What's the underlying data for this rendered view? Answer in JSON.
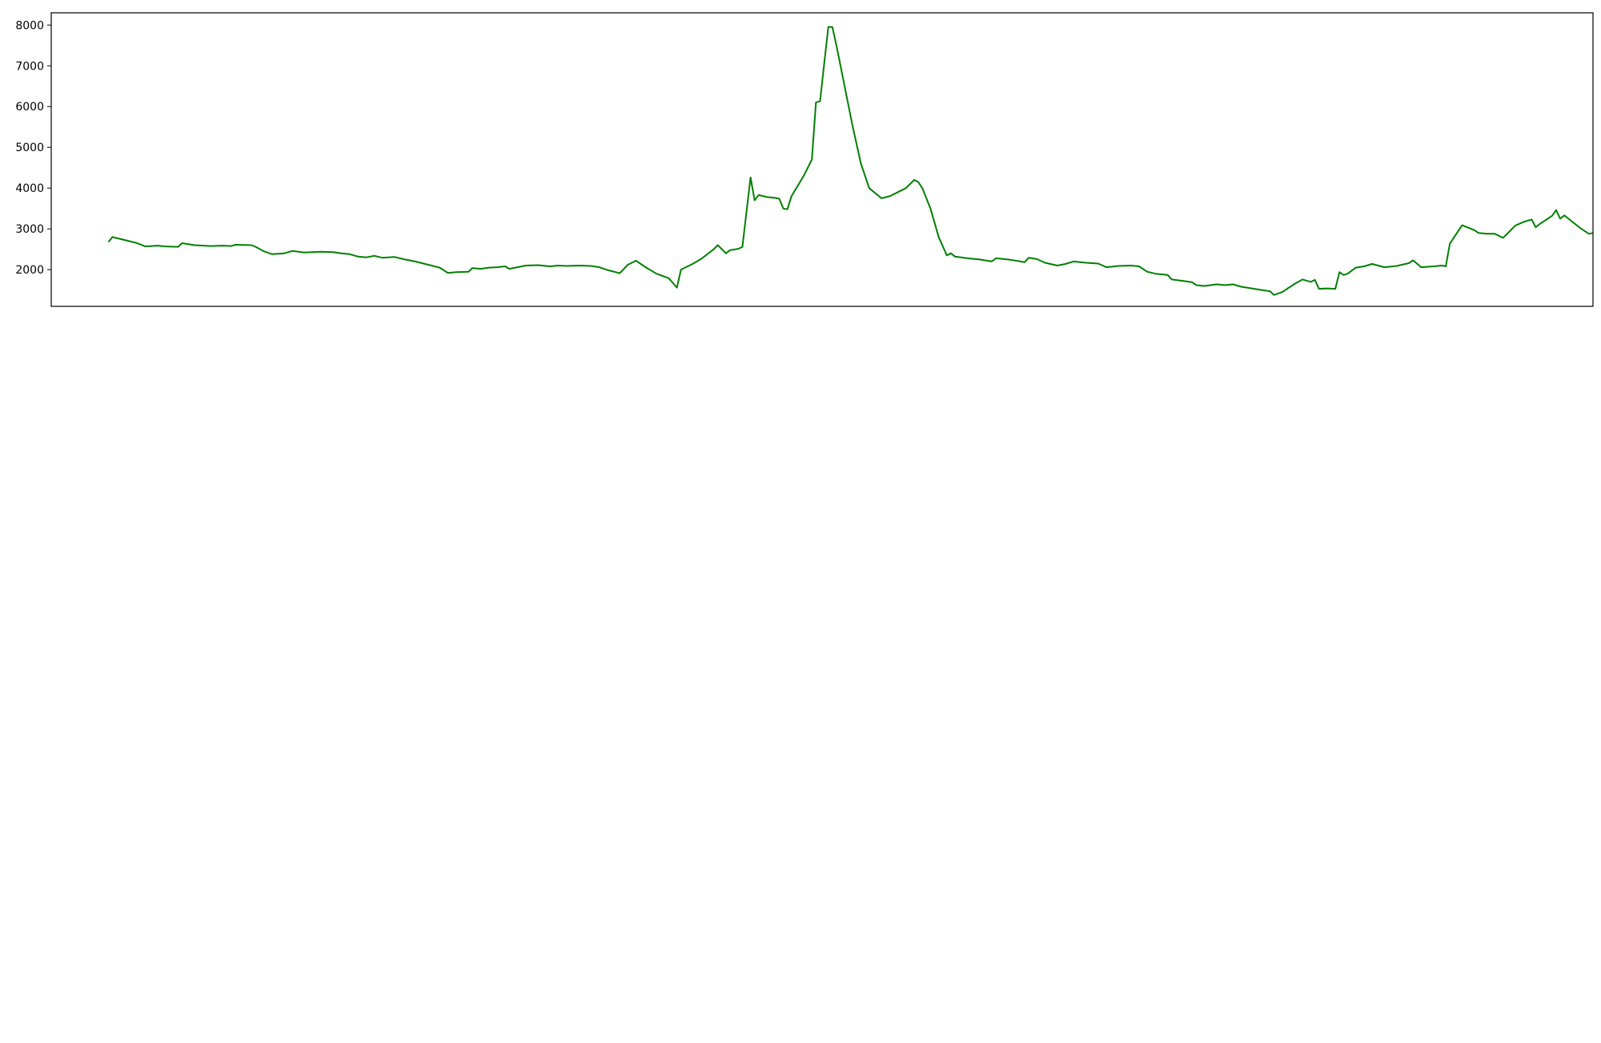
{
  "chart_data": [
    {
      "type": "line",
      "title": "",
      "xlabel": "",
      "ylabel": "",
      "ylim": [
        1100,
        8300
      ],
      "yticks": [
        2000,
        3000,
        4000,
        5000,
        6000,
        7000,
        8000
      ],
      "xlim": [
        "2022-02-24",
        "2023-03-08"
      ],
      "grid": false,
      "series": [
        {
          "color": "#008000",
          "points": [
            [
              "2022-03-10",
              2680
            ],
            [
              "2022-03-11",
              2800
            ],
            [
              "2022-03-13",
              2750
            ],
            [
              "2022-03-15",
              2700
            ],
            [
              "2022-03-17",
              2650
            ],
            [
              "2022-03-19",
              2570
            ],
            [
              "2022-03-22",
              2590
            ],
            [
              "2022-03-24",
              2570
            ],
            [
              "2022-03-27",
              2560
            ],
            [
              "2022-03-28",
              2650
            ],
            [
              "2022-03-31",
              2600
            ],
            [
              "2022-04-04",
              2580
            ],
            [
              "2022-04-07",
              2590
            ],
            [
              "2022-04-09",
              2580
            ],
            [
              "2022-04-10",
              2610
            ],
            [
              "2022-04-14",
              2600
            ],
            [
              "2022-04-15",
              2560
            ],
            [
              "2022-04-17",
              2450
            ],
            [
              "2022-04-19",
              2380
            ],
            [
              "2022-04-22",
              2400
            ],
            [
              "2022-04-24",
              2460
            ],
            [
              "2022-04-27",
              2420
            ],
            [
              "2022-05-01",
              2440
            ],
            [
              "2022-05-04",
              2430
            ],
            [
              "2022-05-06",
              2400
            ],
            [
              "2022-05-08",
              2380
            ],
            [
              "2022-05-10",
              2320
            ],
            [
              "2022-05-12",
              2300
            ],
            [
              "2022-05-14",
              2340
            ],
            [
              "2022-05-16",
              2290
            ],
            [
              "2022-05-19",
              2310
            ],
            [
              "2022-05-21",
              2260
            ],
            [
              "2022-05-24",
              2200
            ],
            [
              "2022-05-26",
              2150
            ],
            [
              "2022-05-28",
              2100
            ],
            [
              "2022-05-30",
              2050
            ],
            [
              "2022-06-01",
              1920
            ],
            [
              "2022-06-03",
              1940
            ],
            [
              "2022-06-06",
              1950
            ],
            [
              "2022-06-07",
              2040
            ],
            [
              "2022-06-09",
              2020
            ],
            [
              "2022-06-11",
              2050
            ],
            [
              "2022-06-13",
              2060
            ],
            [
              "2022-06-15",
              2080
            ],
            [
              "2022-06-16",
              2020
            ],
            [
              "2022-06-18",
              2060
            ],
            [
              "2022-06-20",
              2100
            ],
            [
              "2022-06-23",
              2110
            ],
            [
              "2022-06-26",
              2080
            ],
            [
              "2022-06-28",
              2100
            ],
            [
              "2022-06-30",
              2090
            ],
            [
              "2022-07-03",
              2100
            ],
            [
              "2022-07-06",
              2090
            ],
            [
              "2022-07-08",
              2060
            ],
            [
              "2022-07-10",
              1990
            ],
            [
              "2022-07-12",
              1940
            ],
            [
              "2022-07-13",
              1910
            ],
            [
              "2022-07-15",
              2120
            ],
            [
              "2022-07-17",
              2220
            ],
            [
              "2022-07-19",
              2080
            ],
            [
              "2022-07-22",
              1900
            ],
            [
              "2022-07-25",
              1790
            ],
            [
              "2022-07-27",
              1560
            ],
            [
              "2022-07-28",
              2000
            ],
            [
              "2022-07-31",
              2150
            ],
            [
              "2022-08-02",
              2270
            ],
            [
              "2022-08-05",
              2500
            ],
            [
              "2022-08-06",
              2600
            ],
            [
              "2022-08-08",
              2400
            ],
            [
              "2022-08-09",
              2480
            ],
            [
              "2022-08-11",
              2510
            ],
            [
              "2022-08-12",
              2560
            ],
            [
              "2022-08-14",
              4260
            ],
            [
              "2022-08-15",
              3700
            ],
            [
              "2022-08-16",
              3830
            ],
            [
              "2022-08-18",
              3780
            ],
            [
              "2022-08-20",
              3760
            ],
            [
              "2022-08-21",
              3740
            ],
            [
              "2022-08-22",
              3500
            ],
            [
              "2022-08-23",
              3480
            ],
            [
              "2022-08-24",
              3800
            ],
            [
              "2022-08-27",
              4300
            ],
            [
              "2022-08-28",
              4500
            ],
            [
              "2022-08-29",
              4700
            ],
            [
              "2022-08-30",
              6100
            ],
            [
              "2022-08-31",
              6130
            ],
            [
              "2022-09-01",
              7050
            ],
            [
              "2022-09-02",
              7950
            ],
            [
              "2022-09-03",
              7950
            ],
            [
              "2022-09-04",
              7500
            ],
            [
              "2022-09-06",
              6500
            ],
            [
              "2022-09-08",
              5500
            ],
            [
              "2022-09-10",
              4600
            ],
            [
              "2022-09-12",
              4000
            ],
            [
              "2022-09-15",
              3750
            ],
            [
              "2022-09-17",
              3800
            ],
            [
              "2022-09-19",
              3900
            ],
            [
              "2022-09-21",
              4000
            ],
            [
              "2022-09-23",
              4200
            ],
            [
              "2022-09-24",
              4150
            ],
            [
              "2022-09-25",
              4000
            ],
            [
              "2022-09-27",
              3500
            ],
            [
              "2022-09-29",
              2800
            ],
            [
              "2022-10-01",
              2350
            ],
            [
              "2022-10-02",
              2400
            ],
            [
              "2022-10-03",
              2320
            ],
            [
              "2022-10-06",
              2280
            ],
            [
              "2022-10-09",
              2250
            ],
            [
              "2022-10-12",
              2200
            ],
            [
              "2022-10-13",
              2280
            ],
            [
              "2022-10-16",
              2250
            ],
            [
              "2022-10-19",
              2200
            ],
            [
              "2022-10-20",
              2180
            ],
            [
              "2022-10-21",
              2290
            ],
            [
              "2022-10-23",
              2260
            ],
            [
              "2022-10-25",
              2170
            ],
            [
              "2022-10-28",
              2100
            ],
            [
              "2022-10-30",
              2140
            ],
            [
              "2022-11-01",
              2200
            ],
            [
              "2022-11-04",
              2170
            ],
            [
              "2022-11-07",
              2150
            ],
            [
              "2022-11-09",
              2060
            ],
            [
              "2022-11-12",
              2090
            ],
            [
              "2022-11-15",
              2100
            ],
            [
              "2022-11-17",
              2080
            ],
            [
              "2022-11-19",
              1950
            ],
            [
              "2022-11-21",
              1900
            ],
            [
              "2022-11-23",
              1880
            ],
            [
              "2022-11-24",
              1870
            ],
            [
              "2022-11-25",
              1760
            ],
            [
              "2022-11-28",
              1720
            ],
            [
              "2022-11-30",
              1690
            ],
            [
              "2022-12-01",
              1620
            ],
            [
              "2022-12-03",
              1600
            ],
            [
              "2022-12-06",
              1640
            ],
            [
              "2022-12-08",
              1620
            ],
            [
              "2022-12-10",
              1640
            ],
            [
              "2022-12-12",
              1580
            ],
            [
              "2022-12-14",
              1550
            ],
            [
              "2022-12-17",
              1500
            ],
            [
              "2022-12-19",
              1470
            ],
            [
              "2022-12-20",
              1380
            ],
            [
              "2022-12-22",
              1450
            ],
            [
              "2022-12-25",
              1650
            ],
            [
              "2022-12-27",
              1760
            ],
            [
              "2022-12-29",
              1700
            ],
            [
              "2022-12-30",
              1750
            ],
            [
              "2022-12-31",
              1530
            ],
            [
              "2023-01-02",
              1540
            ],
            [
              "2023-01-04",
              1530
            ],
            [
              "2023-01-05",
              1940
            ],
            [
              "2023-01-06",
              1870
            ],
            [
              "2023-01-07",
              1900
            ],
            [
              "2023-01-09",
              2050
            ],
            [
              "2023-01-11",
              2080
            ],
            [
              "2023-01-13",
              2140
            ],
            [
              "2023-01-16",
              2060
            ],
            [
              "2023-01-19",
              2090
            ],
            [
              "2023-01-22",
              2160
            ],
            [
              "2023-01-23",
              2230
            ],
            [
              "2023-01-25",
              2060
            ],
            [
              "2023-01-28",
              2080
            ],
            [
              "2023-01-30",
              2100
            ],
            [
              "2023-01-31",
              2080
            ],
            [
              "2023-02-01",
              2640
            ],
            [
              "2023-02-02",
              2790
            ],
            [
              "2023-02-04",
              3090
            ],
            [
              "2023-02-07",
              2970
            ],
            [
              "2023-02-08",
              2900
            ],
            [
              "2023-02-10",
              2880
            ],
            [
              "2023-02-12",
              2880
            ],
            [
              "2023-02-14",
              2780
            ],
            [
              "2023-02-17",
              3080
            ],
            [
              "2023-02-19",
              3170
            ],
            [
              "2023-02-21",
              3230
            ],
            [
              "2023-02-22",
              3040
            ],
            [
              "2023-02-23",
              3120
            ],
            [
              "2023-02-26",
              3320
            ],
            [
              "2023-02-27",
              3460
            ],
            [
              "2023-02-28",
              3250
            ],
            [
              "2023-03-01",
              3330
            ],
            [
              "2023-03-05",
              3010
            ],
            [
              "2023-03-07",
              2880
            ],
            [
              "2023-03-08",
              2900
            ]
          ]
        }
      ]
    }
  ]
}
